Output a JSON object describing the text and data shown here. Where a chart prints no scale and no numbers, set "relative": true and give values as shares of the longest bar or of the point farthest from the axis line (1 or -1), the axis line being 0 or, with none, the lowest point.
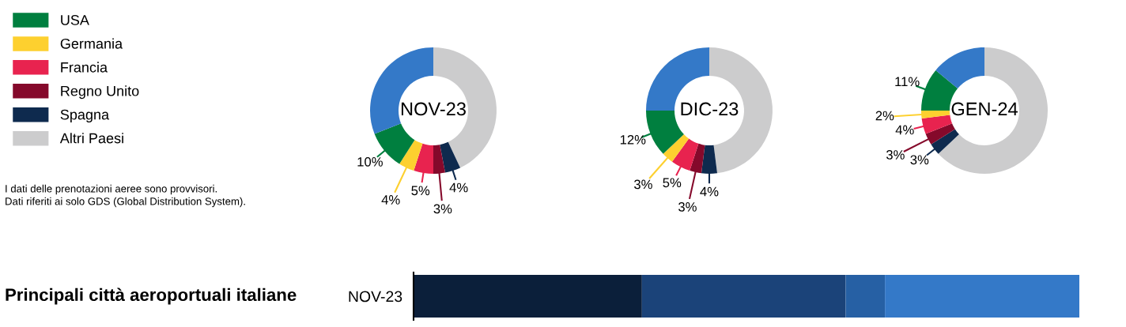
{
  "chart_data": [
    {
      "type": "donut",
      "title": "NOV-23",
      "categories": [
        "Altri Paesi",
        "Spagna",
        "Regno Unito",
        "Francia",
        "Germania",
        "USA",
        null
      ],
      "values": [
        43,
        4,
        3,
        5,
        4,
        10,
        31
      ],
      "colors": [
        "#cccccd",
        "#0e2a4e",
        "#85092b",
        "#e8234f",
        "#fdd02f",
        "#007f3f",
        "#3479c8"
      ],
      "value_labels": [
        null,
        "4%",
        "3%",
        "5%",
        "4%",
        "10%",
        null
      ],
      "legend": "left",
      "annotations": [
        "I dati delle prenotazioni aeree sono provvisori.",
        "Dati riferiti ai solo GDS (Global Distribution System)."
      ]
    },
    {
      "type": "donut",
      "title": "DIC-23",
      "categories": [
        null,
        null,
        null,
        null,
        null,
        null,
        null
      ],
      "values": [
        48,
        4,
        3,
        5,
        3,
        12,
        25
      ],
      "colors": [
        "#cccccd",
        "#0e2a4e",
        "#85092b",
        "#e8234f",
        "#fdd02f",
        "#007f3f",
        "#3479c8"
      ],
      "value_labels": [
        null,
        "4%",
        "3%",
        "5%",
        "3%",
        "12%",
        null
      ]
    },
    {
      "type": "donut",
      "title": "GEN-24",
      "categories": [
        null,
        null,
        null,
        null,
        null,
        null,
        null
      ],
      "values": [
        63,
        3,
        3,
        4,
        2,
        11,
        14
      ],
      "colors": [
        "#cccccd",
        "#0e2a4e",
        "#85092b",
        "#e8234f",
        "#fdd02f",
        "#007f3f",
        "#3479c8"
      ],
      "value_labels": [
        null,
        "3%",
        "3%",
        "4%",
        "2%",
        "11%",
        null
      ]
    },
    {
      "type": "bar",
      "title": "Principali città aeroportuali italiane",
      "orientation": "horizontal",
      "stacked": true,
      "relative": true,
      "categories": [
        "NOV-23"
      ],
      "series": [
        {
          "color": "#0b1f3a",
          "values": [
            0.343
          ]
        },
        {
          "color": "#1b4379",
          "values": [
            0.306
          ]
        },
        {
          "color": "#2660a4",
          "values": [
            0.059
          ]
        },
        {
          "color": "#3479c8",
          "values": [
            0.292
          ]
        }
      ]
    }
  ]
}
